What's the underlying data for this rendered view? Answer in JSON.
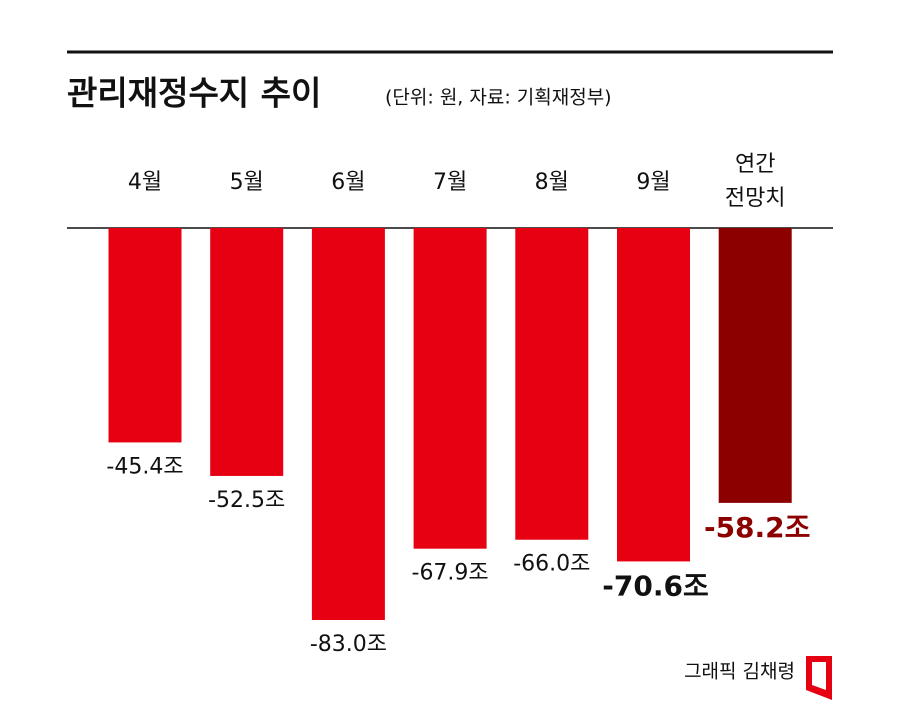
{
  "chart_data": {
    "type": "bar",
    "title": "관리재정수지 추이",
    "subtitle": "(단위: 원, 자료: 기획재정부)",
    "categories": [
      "4월",
      "5월",
      "6월",
      "7월",
      "8월",
      "9월",
      "연간 전망치"
    ],
    "values": [
      -45.4,
      -52.5,
      -83.0,
      -67.9,
      -66.0,
      -70.6,
      -58.2
    ],
    "value_labels": [
      "-45.4조",
      "-52.5조",
      "-83.0조",
      "-67.9조",
      "-66.0조",
      "-70.6조",
      "-58.2조"
    ],
    "colors": [
      "#e60012",
      "#e60012",
      "#e60012",
      "#e60012",
      "#e60012",
      "#e60012",
      "#8c0000"
    ],
    "credit": "그래픽 김채령"
  }
}
